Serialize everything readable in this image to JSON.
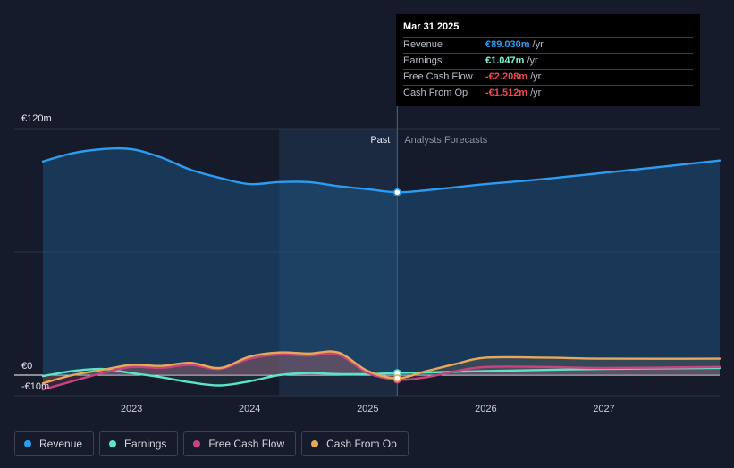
{
  "tooltip": {
    "date": "Mar 31 2025",
    "rows": [
      {
        "label": "Revenue",
        "value": "€89.030m",
        "unit": "/yr",
        "color": "#2c9cf0"
      },
      {
        "label": "Earnings",
        "value": "€1.047m",
        "unit": "/yr",
        "color": "#7ef0d8"
      },
      {
        "label": "Free Cash Flow",
        "value": "-€2.208m",
        "unit": "/yr",
        "color": "#f0494f"
      },
      {
        "label": "Cash From Op",
        "value": "-€1.512m",
        "unit": "/yr",
        "color": "#f0494f"
      }
    ]
  },
  "legend": [
    {
      "label": "Revenue",
      "color": "#2c9cf0"
    },
    {
      "label": "Earnings",
      "color": "#5de3c6"
    },
    {
      "label": "Free Cash Flow",
      "color": "#c8447f"
    },
    {
      "label": "Cash From Op",
      "color": "#e8a85a"
    }
  ],
  "chart_data": {
    "type": "line",
    "y_axis_labels": [
      "€120m",
      "€0",
      "-€10m"
    ],
    "ylim": [
      -10,
      120
    ],
    "xlim": [
      2022.25,
      2027.98
    ],
    "x_ticks": [
      {
        "value": 2023,
        "label": "2023"
      },
      {
        "value": 2024,
        "label": "2024"
      },
      {
        "value": 2025,
        "label": "2025"
      },
      {
        "value": 2026,
        "label": "2026"
      },
      {
        "value": 2027,
        "label": "2027"
      }
    ],
    "past_label": "Past",
    "forecast_label": "Analysts Forecasts",
    "divider_x": 2025.25,
    "highlight_range": [
      2024.25,
      2025.25
    ],
    "grid": true,
    "legend_position": "bottom-left",
    "series": [
      {
        "name": "Revenue",
        "color": "#2c9cf0",
        "points": [
          [
            2022.25,
            104
          ],
          [
            2022.5,
            108
          ],
          [
            2022.75,
            110
          ],
          [
            2023.0,
            110
          ],
          [
            2023.25,
            106
          ],
          [
            2023.5,
            100
          ],
          [
            2023.75,
            96
          ],
          [
            2024.0,
            93
          ],
          [
            2024.25,
            94
          ],
          [
            2024.5,
            94
          ],
          [
            2024.75,
            92
          ],
          [
            2025.0,
            90.5
          ],
          [
            2025.25,
            89
          ],
          [
            2025.5,
            90
          ],
          [
            2025.75,
            91.5
          ],
          [
            2026.0,
            93
          ],
          [
            2026.5,
            95.5
          ],
          [
            2027.0,
            98.5
          ],
          [
            2027.5,
            101.5
          ],
          [
            2027.98,
            104.5
          ]
        ]
      },
      {
        "name": "Earnings",
        "color": "#5de3c6",
        "points": [
          [
            2022.25,
            -0.5
          ],
          [
            2022.5,
            2
          ],
          [
            2022.75,
            3
          ],
          [
            2023.0,
            1
          ],
          [
            2023.25,
            -1
          ],
          [
            2023.5,
            -3.5
          ],
          [
            2023.75,
            -5
          ],
          [
            2024.0,
            -3
          ],
          [
            2024.25,
            0
          ],
          [
            2024.5,
            1
          ],
          [
            2024.75,
            0.5
          ],
          [
            2025.0,
            0.5
          ],
          [
            2025.25,
            1.047
          ],
          [
            2025.5,
            1.3
          ],
          [
            2026.0,
            2
          ],
          [
            2027.0,
            3
          ],
          [
            2027.98,
            3.5
          ]
        ]
      },
      {
        "name": "Free Cash Flow",
        "color": "#c8447f",
        "points": [
          [
            2022.25,
            -7
          ],
          [
            2022.5,
            -3
          ],
          [
            2022.75,
            1
          ],
          [
            2023.0,
            4
          ],
          [
            2023.25,
            3.5
          ],
          [
            2023.5,
            5
          ],
          [
            2023.75,
            3
          ],
          [
            2024.0,
            8
          ],
          [
            2024.25,
            10
          ],
          [
            2024.5,
            9.5
          ],
          [
            2024.75,
            10
          ],
          [
            2025.0,
            1
          ],
          [
            2025.25,
            -2.208
          ],
          [
            2025.5,
            -1
          ],
          [
            2025.75,
            2
          ],
          [
            2026.0,
            4
          ],
          [
            2026.5,
            4
          ],
          [
            2027.0,
            3.5
          ],
          [
            2027.98,
            4
          ]
        ]
      },
      {
        "name": "Cash From Op",
        "color": "#e8a85a",
        "points": [
          [
            2022.25,
            -4
          ],
          [
            2022.5,
            0
          ],
          [
            2022.75,
            2.5
          ],
          [
            2023.0,
            5
          ],
          [
            2023.25,
            4.5
          ],
          [
            2023.5,
            6
          ],
          [
            2023.75,
            3.5
          ],
          [
            2024.0,
            9
          ],
          [
            2024.25,
            11
          ],
          [
            2024.5,
            10.5
          ],
          [
            2024.75,
            11
          ],
          [
            2025.0,
            2
          ],
          [
            2025.25,
            -1.512
          ],
          [
            2025.5,
            2
          ],
          [
            2025.75,
            5.5
          ],
          [
            2026.0,
            8.5
          ],
          [
            2026.5,
            8.5
          ],
          [
            2027.0,
            8
          ],
          [
            2027.98,
            8
          ]
        ]
      }
    ]
  }
}
